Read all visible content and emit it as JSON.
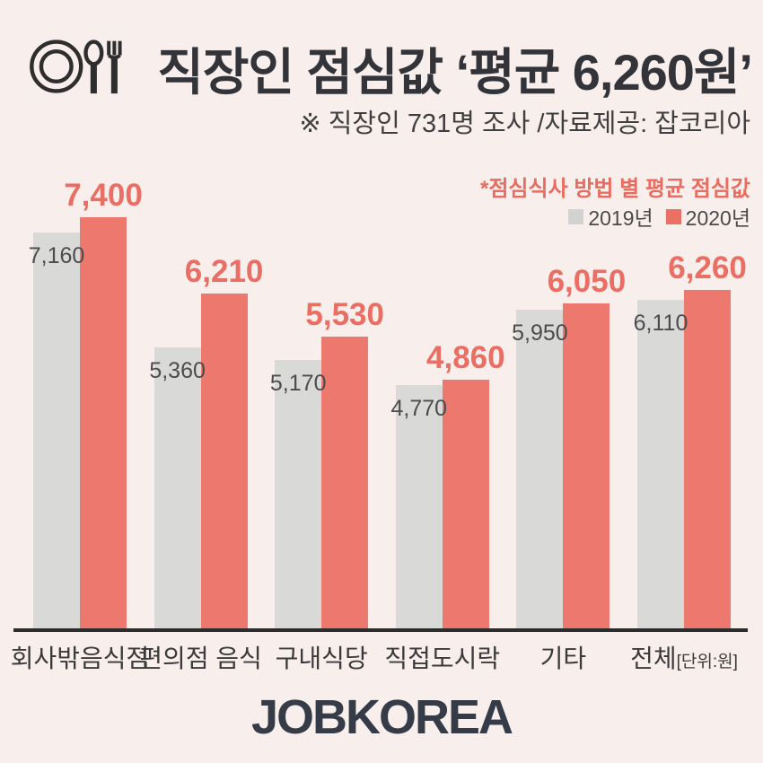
{
  "header": {
    "title": "직장인 점심값 ‘평균 6,260원’",
    "subtitle": "※ 직장인 731명 조사 /자료제공: 잡코리아",
    "icon": "plate-spoon-fork-icon"
  },
  "chart_note": "*점심식사 방법 별 평균 점심값",
  "legend": [
    {
      "label": "2019년",
      "color": "#d2d2d1"
    },
    {
      "label": "2020년",
      "color": "#ea6f64"
    }
  ],
  "chart_data": {
    "type": "bar",
    "title": "점심식사 방법 별 평균 점심값",
    "categories": [
      "회사밖음식점",
      "편의점 음식",
      "구내식당",
      "직접도시락",
      "기타",
      "전체"
    ],
    "series": [
      {
        "name": "2019년",
        "color": "#d9d9d8",
        "values": [
          7160,
          5360,
          5170,
          4770,
          5950,
          6110
        ]
      },
      {
        "name": "2020년",
        "color": "#ed796e",
        "values": [
          7400,
          6210,
          5530,
          4860,
          6050,
          6260
        ]
      }
    ],
    "unit_label": "[단위:원]",
    "unit_attached_to": "전체",
    "value_labels": true,
    "legend_position": "top-right",
    "xlabel": "",
    "ylabel": "",
    "y_axis_hidden": true,
    "grid": false
  },
  "footer": {
    "logo": "JOBKOREA"
  },
  "colors": {
    "background": "#f8efec",
    "bar_2019": "#d9d9d8",
    "bar_2020": "#ed796e",
    "value_text_2019": "#4c4c4c",
    "value_text_2020": "#ea6e63",
    "note_text": "#e96c61",
    "title_text": "#32343a",
    "axis_line": "#2c2c2c",
    "logo_text": "#353c47"
  }
}
